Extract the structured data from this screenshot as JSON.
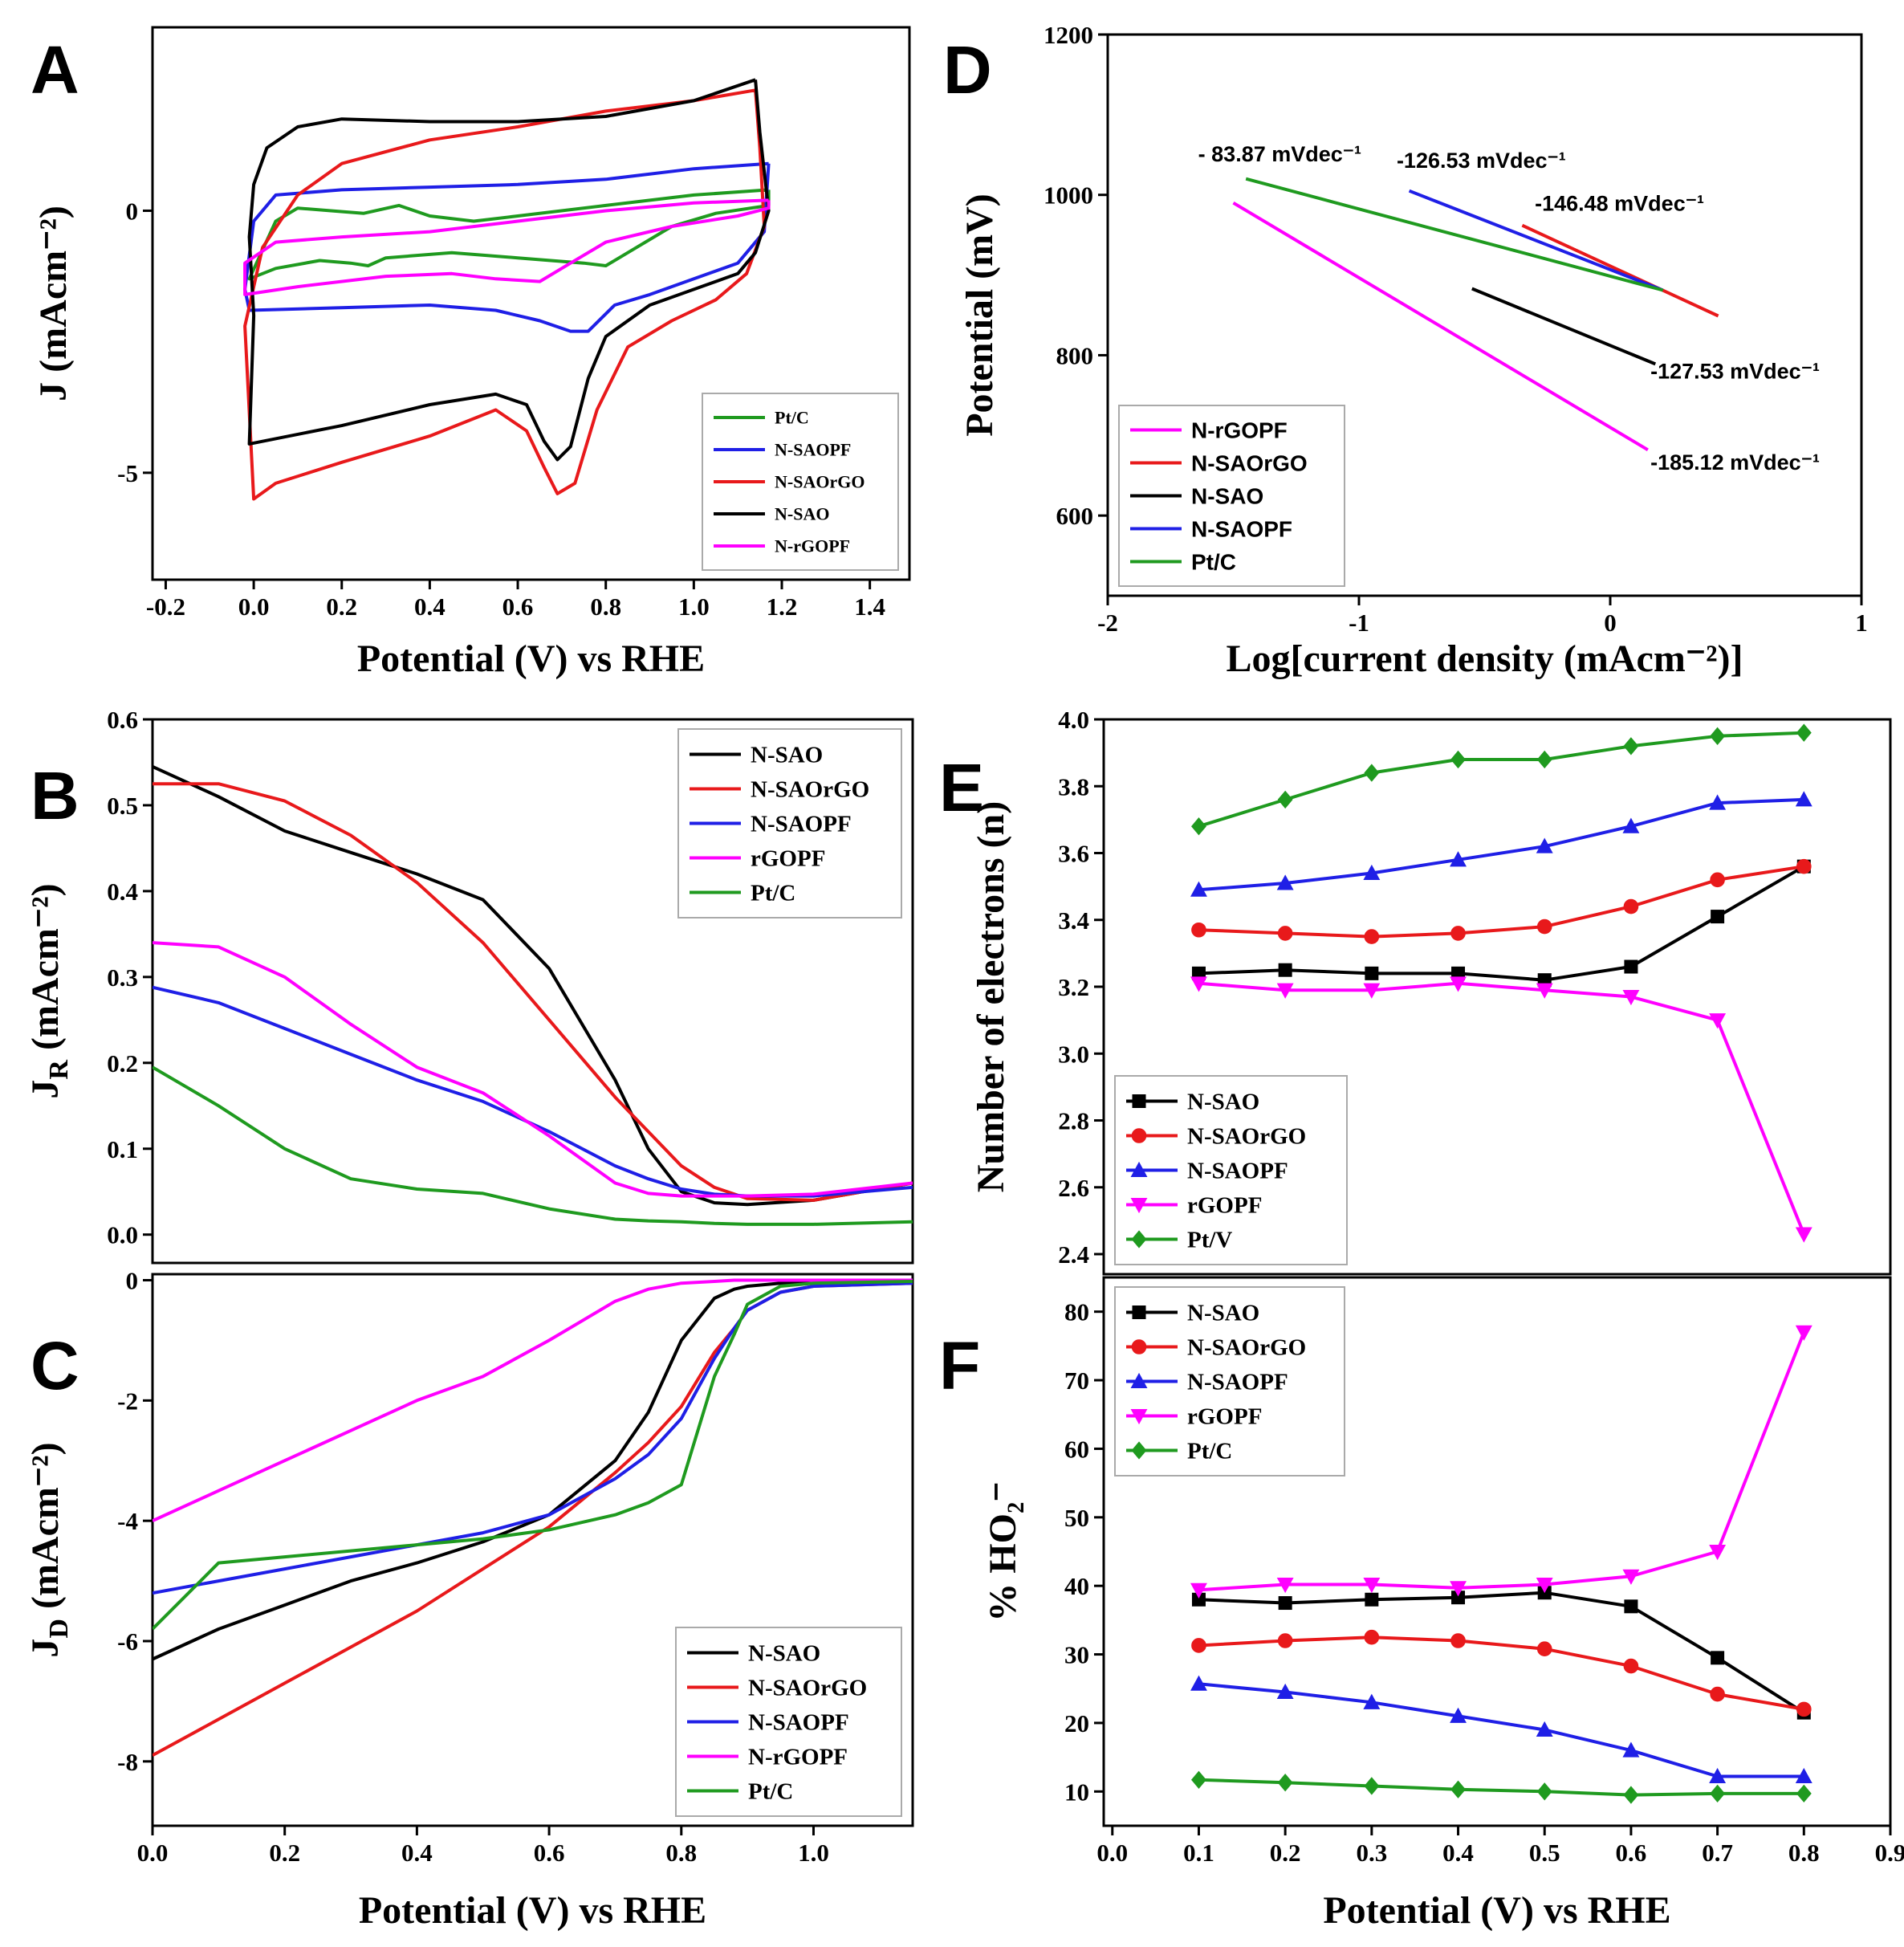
{
  "chart_data": [
    {
      "type": "line",
      "label": "A",
      "xlabel": "Potential (V) vs RHE",
      "ylabel": "J (mAcm⁻²)",
      "xlim": [
        -0.23,
        1.49
      ],
      "ylim": [
        -7.04,
        3.5
      ],
      "xticks": [
        -0.2,
        {
          "value": 0,
          "label": "0.0"
        },
        0.2,
        0.4,
        0.6,
        0.8,
        {
          "value": 1,
          "label": "1.0"
        },
        1.2,
        1.4
      ],
      "yticks": [
        0,
        -5
      ],
      "legend": "lower right",
      "series": [
        {
          "name": "Pt/C",
          "color": "#1f9a1f",
          "x": [
            1.17,
            1.0,
            0.8,
            0.6,
            0.5,
            0.4,
            0.33,
            0.25,
            0.1,
            0.05,
            -0.01,
            0.05,
            0.15,
            0.22,
            0.26,
            0.3,
            0.45,
            0.6,
            0.75,
            0.8,
            0.85,
            0.95,
            1.05,
            1.17,
            1.17
          ],
          "values": [
            0.4,
            0.3,
            0.1,
            -0.1,
            -0.2,
            -0.1,
            0.1,
            -0.05,
            0.05,
            -0.2,
            -1.3,
            -1.1,
            -0.95,
            -1.0,
            -1.05,
            -0.9,
            -0.8,
            -0.9,
            -1.0,
            -1.05,
            -0.8,
            -0.3,
            -0.05,
            0.1,
            0.4
          ]
        },
        {
          "name": "N-SAOPF",
          "color": "#1f1fe6",
          "x": [
            1.17,
            1.0,
            0.8,
            0.6,
            0.4,
            0.2,
            0.05,
            0.0,
            -0.02,
            -0.01,
            0.2,
            0.4,
            0.55,
            0.65,
            0.72,
            0.76,
            0.82,
            0.9,
            1.0,
            1.1,
            1.16,
            1.17
          ],
          "values": [
            0.9,
            0.8,
            0.6,
            0.5,
            0.45,
            0.4,
            0.3,
            -0.2,
            -1.5,
            -1.9,
            -1.85,
            -1.8,
            -1.9,
            -2.1,
            -2.3,
            -2.3,
            -1.8,
            -1.6,
            -1.3,
            -1.0,
            -0.4,
            0.9
          ]
        },
        {
          "name": "N-SAOrGO",
          "color": "#e8191b",
          "x": [
            1.14,
            1.0,
            0.8,
            0.6,
            0.4,
            0.2,
            0.1,
            0.02,
            -0.02,
            0.0,
            0.05,
            0.2,
            0.4,
            0.55,
            0.62,
            0.66,
            0.69,
            0.73,
            0.78,
            0.85,
            0.95,
            1.05,
            1.12,
            1.16,
            1.15,
            1.14
          ],
          "values": [
            2.3,
            2.1,
            1.9,
            1.6,
            1.35,
            0.9,
            0.3,
            -0.7,
            -2.2,
            -5.5,
            -5.2,
            -4.8,
            -4.3,
            -3.8,
            -4.2,
            -4.9,
            -5.4,
            -5.2,
            -3.8,
            -2.6,
            -2.1,
            -1.7,
            -1.2,
            -0.3,
            1.2,
            2.3
          ]
        },
        {
          "name": "N-SAO",
          "color": "#000000",
          "x": [
            1.14,
            1.0,
            0.8,
            0.6,
            0.4,
            0.2,
            0.1,
            0.03,
            0.0,
            -0.01,
            0.0,
            -0.01,
            0.2,
            0.4,
            0.55,
            0.62,
            0.66,
            0.69,
            0.72,
            0.76,
            0.8,
            0.9,
            1.0,
            1.1,
            1.14,
            1.17,
            1.15,
            1.14
          ],
          "values": [
            2.5,
            2.1,
            1.8,
            1.7,
            1.7,
            1.75,
            1.6,
            1.2,
            0.5,
            -0.5,
            -2,
            -4.45,
            -4.1,
            -3.7,
            -3.5,
            -3.7,
            -4.4,
            -4.75,
            -4.5,
            -3.2,
            -2.4,
            -1.8,
            -1.5,
            -1.2,
            -0.8,
            0,
            1.5,
            2.5
          ]
        },
        {
          "name": "N-rGOPF",
          "color": "#ff00ff",
          "x": [
            1.17,
            1.0,
            0.8,
            0.6,
            0.4,
            0.2,
            0.05,
            -0.02,
            -0.02,
            0.1,
            0.3,
            0.45,
            0.55,
            0.65,
            0.72,
            0.8,
            0.95,
            1.1,
            1.17,
            1.17
          ],
          "values": [
            0.2,
            0.15,
            0.0,
            -0.2,
            -0.4,
            -0.5,
            -0.6,
            -1.0,
            -1.6,
            -1.45,
            -1.25,
            -1.2,
            -1.3,
            -1.35,
            -1.0,
            -0.6,
            -0.3,
            -0.1,
            0.05,
            0.2
          ]
        }
      ]
    },
    {
      "type": "line",
      "label": "B",
      "ylabel": {
        "main": "J",
        "sub": "R",
        "unit": "(mAcm⁻²)"
      },
      "xlim": [
        0,
        1.15
      ],
      "ylim": [
        -0.033,
        0.6
      ],
      "yticks": [
        {
          "value": 0,
          "label": "0.0"
        },
        0.1,
        0.2,
        0.3,
        0.4,
        0.5,
        0.6
      ],
      "legend": "upper right",
      "x": [
        0,
        0.1,
        0.2,
        0.3,
        0.4,
        0.5,
        0.6,
        0.7,
        0.75,
        0.8,
        0.85,
        0.9,
        1.0,
        1.15
      ],
      "series": [
        {
          "name": "N-SAO",
          "color": "#000000",
          "values": [
            0.545,
            0.51,
            0.47,
            0.445,
            0.42,
            0.39,
            0.31,
            0.18,
            0.1,
            0.05,
            0.037,
            0.035,
            0.04,
            0.06
          ]
        },
        {
          "name": "N-SAOrGO",
          "color": "#e8191b",
          "values": [
            0.525,
            0.525,
            0.505,
            0.465,
            0.41,
            0.34,
            0.25,
            0.16,
            0.12,
            0.08,
            0.055,
            0.042,
            0.04,
            0.06
          ]
        },
        {
          "name": "N-SAOPF",
          "color": "#1f1fe6",
          "values": [
            0.288,
            0.27,
            0.24,
            0.21,
            0.18,
            0.155,
            0.12,
            0.08,
            0.065,
            0.053,
            0.047,
            0.045,
            0.045,
            0.055
          ]
        },
        {
          "name": "rGOPF",
          "color": "#ff00ff",
          "values": [
            0.34,
            0.335,
            0.3,
            0.245,
            0.195,
            0.165,
            0.115,
            0.06,
            0.048,
            0.045,
            0.045,
            0.045,
            0.047,
            0.06
          ]
        },
        {
          "name": "Pt/C",
          "color": "#1f9a1f",
          "values": [
            0.195,
            0.15,
            0.1,
            0.065,
            0.053,
            0.048,
            0.03,
            0.018,
            0.016,
            0.015,
            0.013,
            0.012,
            0.012,
            0.015
          ]
        }
      ]
    },
    {
      "type": "line",
      "label": "C",
      "xlabel": "Potential (V) vs RHE",
      "ylabel": {
        "main": "J",
        "sub": "D",
        "unit": "(mAcm⁻²)"
      },
      "xlim": [
        0,
        1.15
      ],
      "ylim": [
        -9.07,
        0.1
      ],
      "xticks": [
        {
          "value": 0,
          "label": "0.0"
        },
        0.2,
        0.4,
        0.6,
        0.8,
        {
          "value": 1,
          "label": "1.0"
        }
      ],
      "yticks": [
        0,
        -2,
        -4,
        -6,
        -8
      ],
      "legend": "lower right",
      "x": [
        0,
        0.1,
        0.2,
        0.3,
        0.4,
        0.5,
        0.6,
        0.7,
        0.75,
        0.8,
        0.85,
        0.88,
        0.9,
        0.95,
        1.0,
        1.15
      ],
      "series": [
        {
          "name": "N-SAO",
          "color": "#000000",
          "values": [
            -6.3,
            -5.8,
            -5.4,
            -5.0,
            -4.7,
            -4.35,
            -3.9,
            -3.0,
            -2.2,
            -1.0,
            -0.3,
            -0.15,
            -0.1,
            -0.05,
            -0.03,
            0.0
          ]
        },
        {
          "name": "N-SAOrGO",
          "color": "#e8191b",
          "values": [
            -7.9,
            -7.3,
            -6.7,
            -6.1,
            -5.5,
            -4.8,
            -4.1,
            -3.2,
            -2.7,
            -2.1,
            -1.2,
            -0.8,
            -0.5,
            -0.2,
            -0.1,
            -0.05
          ]
        },
        {
          "name": "N-SAOPF",
          "color": "#1f1fe6",
          "values": [
            -5.2,
            -5.0,
            -4.8,
            -4.6,
            -4.4,
            -4.2,
            -3.9,
            -3.3,
            -2.9,
            -2.3,
            -1.3,
            -0.8,
            -0.5,
            -0.2,
            -0.1,
            -0.05
          ]
        },
        {
          "name": "N-rGOPF",
          "color": "#ff00ff",
          "values": [
            -4.0,
            -3.5,
            -3.0,
            -2.5,
            -2.0,
            -1.6,
            -1.0,
            -0.35,
            -0.15,
            -0.05,
            -0.02,
            0,
            0,
            0,
            0,
            0
          ]
        },
        {
          "name": "Pt/C",
          "color": "#1f9a1f",
          "values": [
            -5.8,
            -4.7,
            -4.6,
            -4.5,
            -4.4,
            -4.3,
            -4.15,
            -3.9,
            -3.7,
            -3.4,
            -1.6,
            -0.9,
            -0.4,
            -0.1,
            -0.05,
            -0.02
          ]
        }
      ]
    },
    {
      "type": "line",
      "label": "D",
      "xlabel": "Log[current density (mAcm⁻²)]",
      "ylabel": "Potential (mV)",
      "xlim": [
        -2,
        1
      ],
      "ylim": [
        500,
        1200
      ],
      "xticks": [
        -2,
        -1,
        0,
        1
      ],
      "yticks": [
        600,
        800,
        1000,
        1200
      ],
      "legend": "lower left",
      "annotations": [
        "- 83.87 mVdec⁻¹",
        "-126.53 mVdec⁻¹",
        "-146.48 mVdec⁻¹",
        "-127.53 mVdec⁻¹",
        "-185.12 mVdec⁻¹"
      ],
      "series": [
        {
          "name": "N-rGOPF",
          "color": "#ff00ff",
          "x": [
            -1.5,
            0.15
          ],
          "values": [
            990,
            682
          ]
        },
        {
          "name": "N-SAOrGO",
          "color": "#e8191b",
          "x": [
            -0.35,
            0.43
          ],
          "values": [
            962,
            849
          ]
        },
        {
          "name": "N-SAO",
          "color": "#000000",
          "x": [
            -0.55,
            0.18
          ],
          "values": [
            883,
            789
          ]
        },
        {
          "name": "N-SAOPF",
          "color": "#1f1fe6",
          "x": [
            -0.8,
            0.21
          ],
          "values": [
            1005,
            881
          ]
        },
        {
          "name": "Pt/C",
          "color": "#1f9a1f",
          "x": [
            -1.45,
            0.21
          ],
          "values": [
            1020,
            881
          ]
        }
      ]
    },
    {
      "type": "line",
      "label": "E",
      "ylabel": "Number of electrons (n)",
      "xlim": [
        -0.01,
        0.9
      ],
      "ylim": [
        2.34,
        4.0
      ],
      "yticks": [
        2.4,
        2.6,
        2.8,
        {
          "value": 3,
          "label": "3.0"
        },
        3.2,
        3.4,
        3.6,
        3.8,
        {
          "value": 4,
          "label": "4.0"
        }
      ],
      "legend": "lower left",
      "x": [
        0.1,
        0.2,
        0.3,
        0.4,
        0.5,
        0.6,
        0.7,
        0.8
      ],
      "series": [
        {
          "name": "N-SAO",
          "color": "#000000",
          "marker": "square",
          "values": [
            3.24,
            3.25,
            3.24,
            3.24,
            3.22,
            3.26,
            3.41,
            3.56
          ]
        },
        {
          "name": "N-SAOrGO",
          "color": "#e8191b",
          "marker": "circle",
          "values": [
            3.37,
            3.36,
            3.35,
            3.36,
            3.38,
            3.44,
            3.52,
            3.56
          ]
        },
        {
          "name": "N-SAOPF",
          "color": "#1f1fe6",
          "marker": "triangle",
          "values": [
            3.49,
            3.51,
            3.54,
            3.58,
            3.62,
            3.68,
            3.75,
            3.76
          ]
        },
        {
          "name": "rGOPF",
          "color": "#ff00ff",
          "marker": "triangle-down",
          "values": [
            3.21,
            3.19,
            3.19,
            3.21,
            3.19,
            3.17,
            3.1,
            2.46
          ]
        },
        {
          "name": "Pt/V",
          "color": "#1f9a1f",
          "marker": "diamond",
          "values": [
            3.68,
            3.76,
            3.84,
            3.88,
            3.88,
            3.92,
            3.95,
            3.96
          ]
        }
      ]
    },
    {
      "type": "line",
      "label": "F",
      "xlabel": "Potential (V) vs RHE",
      "ylabel": "% HO₂⁻",
      "xlim": [
        -0.01,
        0.9
      ],
      "ylim": [
        5,
        85
      ],
      "xticks": [
        {
          "value": 0,
          "label": "0.0"
        },
        0.1,
        0.2,
        0.3,
        0.4,
        0.5,
        0.6,
        0.7,
        0.8,
        0.9
      ],
      "yticks": [
        10,
        20,
        30,
        40,
        50,
        60,
        70,
        80
      ],
      "legend": "upper left",
      "x": [
        0.1,
        0.2,
        0.3,
        0.4,
        0.5,
        0.6,
        0.7,
        0.8
      ],
      "series": [
        {
          "name": "N-SAO",
          "color": "#000000",
          "marker": "square",
          "values": [
            38,
            37.5,
            38,
            38.3,
            39,
            37,
            29.5,
            21.5
          ]
        },
        {
          "name": "N-SAOrGO",
          "color": "#e8191b",
          "marker": "circle",
          "values": [
            31.3,
            32,
            32.5,
            32,
            30.8,
            28.3,
            24.2,
            22
          ]
        },
        {
          "name": "N-SAOPF",
          "color": "#1f1fe6",
          "marker": "triangle",
          "values": [
            25.7,
            24.5,
            23,
            21,
            19,
            16,
            12.2,
            12.2
          ]
        },
        {
          "name": "rGOPF",
          "color": "#ff00ff",
          "marker": "triangle-down",
          "values": [
            39.4,
            40.2,
            40.2,
            39.7,
            40.2,
            41.4,
            45,
            77
          ]
        },
        {
          "name": "Pt/C",
          "color": "#1f9a1f",
          "marker": "diamond",
          "values": [
            11.7,
            11.3,
            10.8,
            10.3,
            10,
            9.5,
            9.7,
            9.7
          ]
        }
      ]
    }
  ]
}
